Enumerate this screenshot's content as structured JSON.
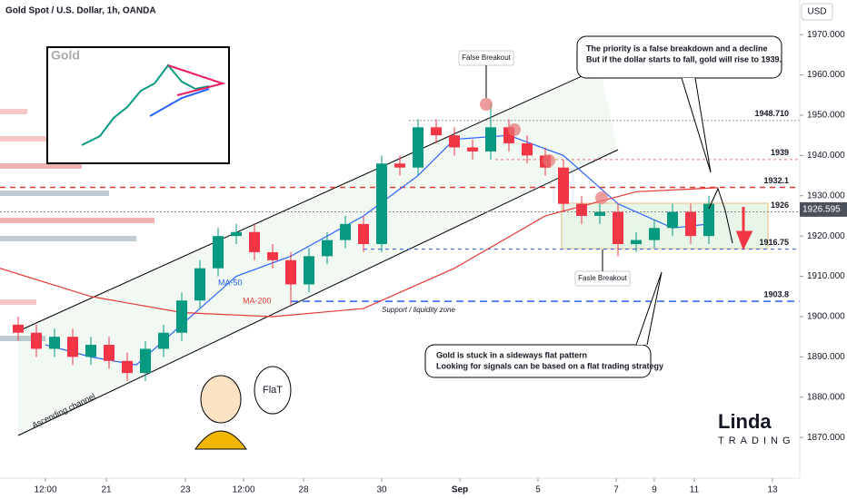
{
  "chart_data": {
    "type": "candlestick",
    "title": "Gold Spot / U.S. Dollar, 1h, OANDA",
    "currency": "USD",
    "x": [
      1,
      2,
      3,
      4,
      5,
      6,
      7,
      8,
      9,
      10,
      11,
      12,
      13,
      14,
      15,
      16,
      17,
      18,
      19,
      20,
      21,
      22,
      23,
      24,
      25,
      26,
      27,
      28,
      29,
      30,
      31,
      32,
      33,
      34,
      35,
      36,
      37,
      38,
      39
    ],
    "open": [
      1898,
      1896,
      1892,
      1895,
      1890,
      1893,
      1889,
      1886,
      1892,
      1896,
      1904,
      1912,
      1920,
      1921,
      1916,
      1914,
      1908,
      1915,
      1919,
      1923,
      1918,
      1938,
      1937,
      1947,
      1945,
      1942,
      1941,
      1947,
      1943,
      1940,
      1937,
      1928,
      1925,
      1926,
      1918,
      1919,
      1922,
      1926,
      1920
    ],
    "high": [
      1900,
      1898,
      1897,
      1897,
      1895,
      1895,
      1891,
      1894,
      1898,
      1906,
      1914,
      1922,
      1923,
      1923,
      1918,
      1916,
      1917,
      1921,
      1925,
      1925,
      1940,
      1940,
      1949,
      1949,
      1947,
      1944,
      1953,
      1949,
      1945,
      1942,
      1939,
      1930,
      1928,
      1928,
      1921,
      1924,
      1928,
      1928,
      1930
    ],
    "low": [
      1894,
      1890,
      1890,
      1888,
      1888,
      1887,
      1884,
      1884,
      1890,
      1894,
      1902,
      1910,
      1918,
      1914,
      1912,
      1903,
      1906,
      1913,
      1917,
      1916,
      1916,
      1935,
      1935,
      1943,
      1940,
      1939,
      1939,
      1941,
      1938,
      1935,
      1926,
      1923,
      1923,
      1915,
      1916,
      1917,
      1920,
      1918,
      1918
    ],
    "close": [
      1896,
      1892,
      1895,
      1890,
      1893,
      1889,
      1886,
      1892,
      1896,
      1904,
      1912,
      1920,
      1921,
      1916,
      1914,
      1908,
      1915,
      1919,
      1923,
      1918,
      1938,
      1937,
      1947,
      1945,
      1942,
      1941,
      1947,
      1943,
      1940,
      1937,
      1928,
      1925,
      1926,
      1918,
      1919,
      1922,
      1926,
      1920,
      1928
    ],
    "up_color": "#089981",
    "down_color": "#f23645",
    "series": [
      {
        "name": "MA-50",
        "color": "#2962ff",
        "x": [
          2.5,
          5,
          7.5,
          10,
          13,
          16,
          20,
          23,
          25,
          28,
          31,
          34,
          37,
          39
        ],
        "values": [
          1893,
          1890,
          1888,
          1898,
          1910,
          1915,
          1925,
          1935,
          1944,
          1945,
          1940,
          1928,
          1922,
          1923
        ]
      },
      {
        "name": "MA-200",
        "color": "#e53935",
        "x": [
          0,
          5,
          10,
          15,
          20,
          25,
          30,
          35,
          39.5
        ],
        "values": [
          1912,
          1905,
          1901,
          1900,
          1902,
          1912,
          1925,
          1931,
          1932
        ]
      }
    ],
    "levels": [
      {
        "value": 1948.71,
        "label": "1948.710",
        "color": "#999999"
      },
      {
        "value": 1939,
        "color": "#e57373"
      },
      {
        "value": 1932.1,
        "color": "#e53935"
      },
      {
        "value": 1926,
        "color": "#888888"
      },
      {
        "value": 1916.75,
        "color": "#2962ff"
      },
      {
        "value": 1903.8,
        "color": "#2962ff"
      }
    ],
    "last_price": 1926.595,
    "xlim": [
      0,
      44
    ],
    "ylim": [
      1859.9,
      1978.6
    ],
    "yticks": [
      {
        "value": 1870,
        "label": "1870.000"
      },
      {
        "value": 1880,
        "label": "1880.000"
      },
      {
        "value": 1890,
        "label": "1890.000"
      },
      {
        "value": 1900,
        "label": "1900.000"
      },
      {
        "value": 1910,
        "label": "1910.000"
      },
      {
        "value": 1920,
        "label": "1920.000"
      },
      {
        "value": 1930,
        "label": "1930.000"
      },
      {
        "value": 1940,
        "label": "1940.000"
      },
      {
        "value": 1950,
        "label": "1950.000"
      },
      {
        "value": 1960,
        "label": "1960.000"
      },
      {
        "value": 1970,
        "label": "1970.000"
      }
    ],
    "xticks": [
      {
        "value": 2.5,
        "label": "12:00"
      },
      {
        "value": 5.85,
        "label": "21"
      },
      {
        "value": 10.2,
        "label": "23"
      },
      {
        "value": 13.4,
        "label": "12:00"
      },
      {
        "value": 16.7,
        "label": "28"
      },
      {
        "value": 21,
        "label": "30"
      },
      {
        "value": 25.3,
        "label": "Sep"
      },
      {
        "value": 29.6,
        "label": "5"
      },
      {
        "value": 33.9,
        "label": "7"
      },
      {
        "value": 36,
        "label": "9"
      },
      {
        "value": 38.2,
        "label": "11"
      },
      {
        "value": 42.5,
        "label": "13"
      }
    ],
    "annotations": {
      "false_breakout": "False Breakout",
      "fasle_breakout": "Fasle Breakout",
      "priority_1": "The priority is a false breakdown and a decline",
      "priority_2": "But if the dollar starts to fall, gold will rise to 1939.",
      "flat_1": "Gold is stuck in a sideways flat pattern",
      "flat_2": "Looking for signals can be based on a flat trading strategy",
      "support": "Support / liquidity zone",
      "channel": "Ascending channel",
      "inset": "Gold",
      "speech": "FlaT",
      "logo": "Linda",
      "logo_sub": "TRADING"
    }
  }
}
